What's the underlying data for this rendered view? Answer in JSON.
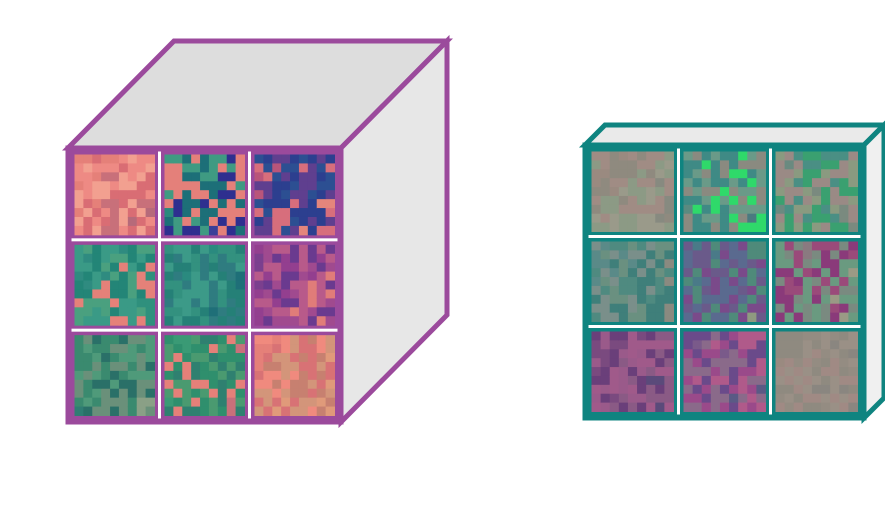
{
  "diagram": {
    "background": "#ffffff",
    "cubes": [
      {
        "id": "left",
        "frame_color": "#9b4a9c",
        "top_face_color": "#dddddd",
        "side_face_color": "#e7e7e7",
        "divider_color": "#ffffff",
        "grid": "3x3",
        "tile_palettes": [
          [
            "#e58079",
            "#ee8a84",
            "#d96d74",
            "#f2a090",
            "#c8707a",
            "#b66a7a"
          ],
          [
            "#2a8a7d",
            "#3f9a82",
            "#e4807a",
            "#1d6f78",
            "#2e2f8f",
            "#3a3e98"
          ],
          [
            "#b9557a",
            "#2c4f92",
            "#2c3f8f",
            "#5f3f8f",
            "#d76e7c",
            "#e4857c"
          ],
          [
            "#2f8b80",
            "#3a9a86",
            "#4aa07f",
            "#238577",
            "#e58179",
            "#2f907d"
          ],
          [
            "#2a8a7f",
            "#33917f",
            "#258077",
            "#3c9a88",
            "#2f7c80",
            "#1f6f78"
          ],
          [
            "#7b3f8e",
            "#933f8f",
            "#6a3a8f",
            "#a04a8f",
            "#b85a8a",
            "#e07c79"
          ],
          [
            "#2f7d73",
            "#3a8a6f",
            "#4f9a7a",
            "#6a907a",
            "#2a7068",
            "#8aa086"
          ],
          [
            "#3a9a75",
            "#2f8f6d",
            "#e58079",
            "#4a9a70",
            "#2f8070",
            "#c9707a"
          ],
          [
            "#e58079",
            "#f08a7e",
            "#c78070",
            "#d3957a",
            "#d87275",
            "#e09a7a"
          ]
        ]
      },
      {
        "id": "right",
        "frame_color": "#0f8480",
        "top_face_color": "#eaeaea",
        "side_face_color": "#f0f0f0",
        "divider_color": "#ffffff",
        "grid": "3x3",
        "tile_palettes": [
          [
            "#9a8a80",
            "#8f8a7f",
            "#a08c84",
            "#8c9a85",
            "#9a9a8a",
            "#878a80"
          ],
          [
            "#5a8a80",
            "#3f8a85",
            "#6a9a88",
            "#8a8a80",
            "#2fd96a",
            "#4a7a80"
          ],
          [
            "#6a8a80",
            "#4a8f84",
            "#8a9a80",
            "#9a8a85",
            "#3aa070",
            "#7a8a7f"
          ],
          [
            "#5a8a88",
            "#4f8a80",
            "#7a8f8a",
            "#6a9080",
            "#3f7f7a",
            "#8a8a80"
          ],
          [
            "#4a7a88",
            "#5a6a8f",
            "#6a5a8a",
            "#4f8a7a",
            "#7a4a8a",
            "#8f9a80"
          ],
          [
            "#8a7a80",
            "#9a4a7a",
            "#7a8a80",
            "#6a9a80",
            "#8a3a7a",
            "#9a9a85"
          ],
          [
            "#7a4a7f",
            "#9a5a8a",
            "#6a3f7a",
            "#a05a8a",
            "#8a5a85",
            "#5a4a7a"
          ],
          [
            "#7a5a8a",
            "#9a4a8a",
            "#6a4a8a",
            "#8a6a8a",
            "#b05a8a",
            "#5a5a85"
          ],
          [
            "#9a8a80",
            "#948c82",
            "#a08a84",
            "#8f8a80",
            "#9a9086",
            "#8a8680"
          ]
        ]
      }
    ]
  }
}
